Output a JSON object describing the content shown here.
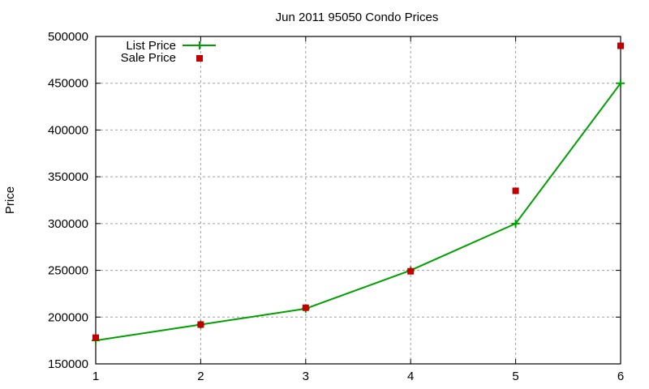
{
  "chart_data": {
    "type": "line",
    "title": "Jun 2011 95050 Condo Prices",
    "xlabel": "",
    "ylabel": "Price",
    "x": [
      1,
      2,
      3,
      4,
      5,
      6
    ],
    "xlim": [
      1,
      6
    ],
    "ylim": [
      150000,
      500000
    ],
    "xticks": [
      "1",
      "2",
      "3",
      "4",
      "5",
      "6"
    ],
    "yticks": [
      "150000",
      "200000",
      "250000",
      "300000",
      "350000",
      "400000",
      "450000",
      "500000"
    ],
    "grid": true,
    "legend_position": "top-left",
    "series": [
      {
        "name": "List Price",
        "style": "line+cross",
        "color": "#00a000",
        "values": [
          175000,
          192000,
          209000,
          250000,
          300000,
          450000
        ]
      },
      {
        "name": "Sale Price",
        "style": "square-points",
        "color": "#c00000",
        "values": [
          178000,
          192000,
          210000,
          249000,
          335000,
          490000
        ]
      }
    ]
  }
}
